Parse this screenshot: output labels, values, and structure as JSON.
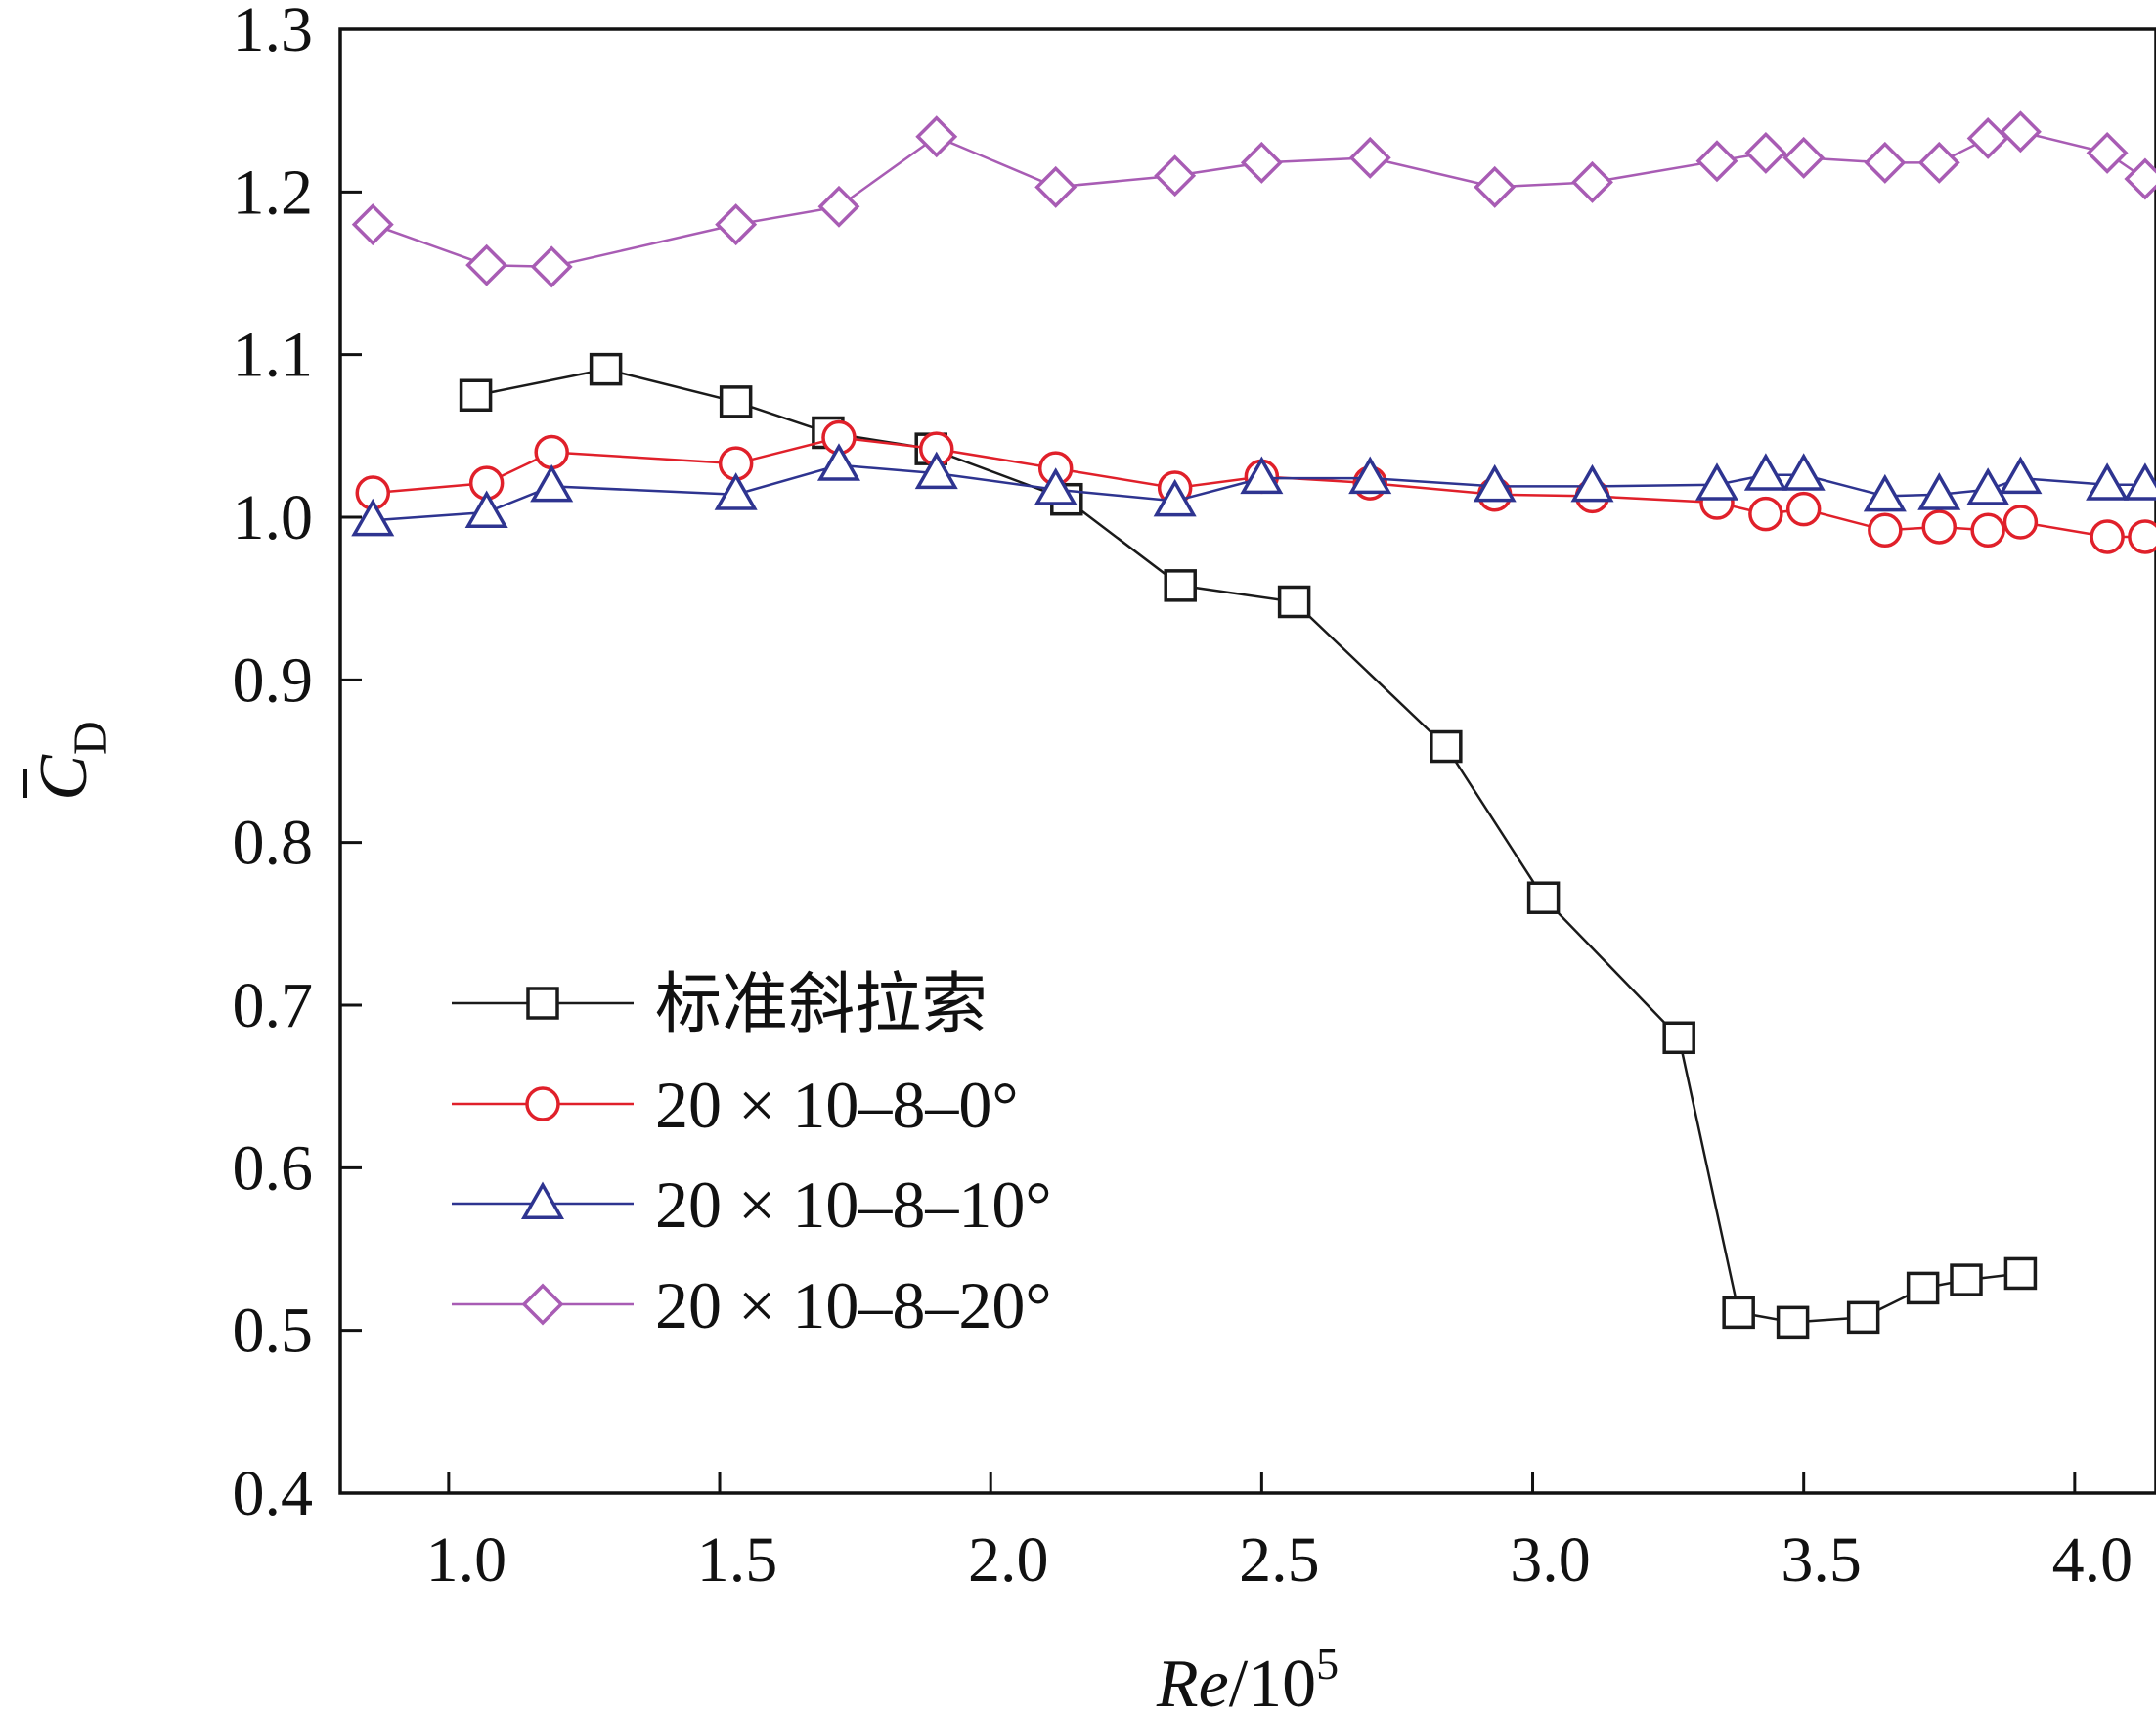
{
  "chart_data": {
    "type": "line",
    "xlabel": {
      "italic": "Re",
      "rest": "/10",
      "sup": "5"
    },
    "ylabel": {
      "main": "C",
      "sub": "D",
      "accent": "bar"
    },
    "xlim": [
      0.8,
      4.15
    ],
    "ylim": [
      0.4,
      1.3
    ],
    "xticks": [
      1.0,
      1.5,
      2.0,
      2.5,
      3.0,
      3.5,
      4.0
    ],
    "yticks": [
      0.4,
      0.5,
      0.6,
      0.7,
      0.8,
      0.9,
      1.0,
      1.1,
      1.2,
      1.3
    ],
    "xtick_labels": [
      "1.0",
      "1.5",
      "2.0",
      "2.5",
      "3.0",
      "3.5",
      "4.0"
    ],
    "ytick_labels": [
      "0.4",
      "0.5",
      "0.6",
      "0.7",
      "0.8",
      "0.9",
      "1.0",
      "1.1",
      "1.2",
      "1.3"
    ],
    "grid": false,
    "legend_position": "lower-left",
    "series": [
      {
        "name": "标准斜拉索",
        "marker": "square",
        "color": "#1a1a1a",
        "x": [
          1.05,
          1.29,
          1.53,
          1.7,
          1.89,
          2.14,
          2.35,
          2.56,
          2.84,
          3.02,
          3.27,
          3.38,
          3.48,
          3.61,
          3.72,
          3.8,
          3.9
        ],
        "y": [
          1.075,
          1.091,
          1.071,
          1.052,
          1.042,
          1.011,
          0.958,
          0.948,
          0.859,
          0.766,
          0.68,
          0.511,
          0.505,
          0.508,
          0.526,
          0.531,
          0.535
        ]
      },
      {
        "name": "20 × 10–8–0°",
        "marker": "circle",
        "color": "#e0202a",
        "x": [
          0.86,
          1.07,
          1.19,
          1.53,
          1.72,
          1.9,
          2.12,
          2.34,
          2.5,
          2.7,
          2.93,
          3.11,
          3.34,
          3.43,
          3.5,
          3.65,
          3.75,
          3.84,
          3.9,
          4.06,
          4.13
        ],
        "y": [
          1.015,
          1.021,
          1.04,
          1.033,
          1.049,
          1.042,
          1.03,
          1.018,
          1.025,
          1.021,
          1.014,
          1.013,
          1.009,
          1.002,
          1.005,
          0.992,
          0.994,
          0.992,
          0.997,
          0.988,
          0.988
        ]
      },
      {
        "name": "20 × 10–8–10°",
        "marker": "triangle",
        "color": "#2e3490",
        "x": [
          0.86,
          1.07,
          1.19,
          1.53,
          1.72,
          1.9,
          2.12,
          2.34,
          2.5,
          2.7,
          2.93,
          3.11,
          3.34,
          3.43,
          3.5,
          3.65,
          3.75,
          3.84,
          3.9,
          4.06,
          4.13
        ],
        "y": [
          0.998,
          1.003,
          1.019,
          1.014,
          1.032,
          1.027,
          1.017,
          1.01,
          1.024,
          1.024,
          1.019,
          1.019,
          1.02,
          1.026,
          1.026,
          1.013,
          1.014,
          1.017,
          1.024,
          1.02,
          1.02
        ]
      },
      {
        "name": "20 × 10–8–20°",
        "marker": "diamond",
        "color": "#a85cb4",
        "x": [
          0.86,
          1.07,
          1.19,
          1.53,
          1.72,
          1.9,
          2.12,
          2.34,
          2.5,
          2.7,
          2.93,
          3.11,
          3.34,
          3.43,
          3.5,
          3.65,
          3.75,
          3.84,
          3.9,
          4.06,
          4.13
        ],
        "y": [
          1.18,
          1.155,
          1.154,
          1.18,
          1.191,
          1.234,
          1.203,
          1.21,
          1.218,
          1.221,
          1.203,
          1.206,
          1.219,
          1.224,
          1.221,
          1.218,
          1.218,
          1.233,
          1.237,
          1.224,
          1.208
        ]
      }
    ]
  }
}
